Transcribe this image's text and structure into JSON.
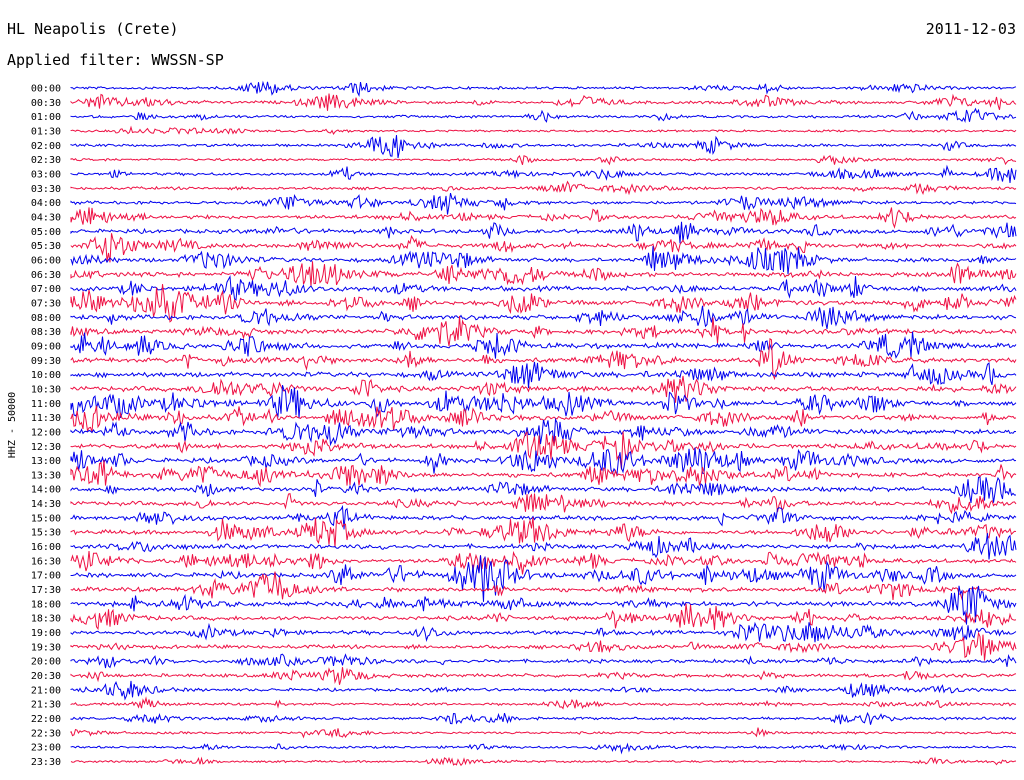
{
  "header": {
    "station": "HL Neapolis (Crete)",
    "date": "2011-12-03",
    "filter": "Applied filter: WWSSN-SP"
  },
  "chart_data": {
    "type": "line",
    "title": "HL Neapolis (Crete)",
    "ylabel": "HHZ - 50000",
    "row_labels": [
      "00:00",
      "00:30",
      "01:00",
      "01:30",
      "02:00",
      "02:30",
      "03:00",
      "03:30",
      "04:00",
      "04:30",
      "05:00",
      "05:30",
      "06:00",
      "06:30",
      "07:00",
      "07:30",
      "08:00",
      "08:30",
      "09:00",
      "09:30",
      "10:00",
      "10:30",
      "11:00",
      "11:30",
      "12:00",
      "12:30",
      "13:00",
      "13:30",
      "14:00",
      "14:30",
      "15:00",
      "15:30",
      "16:00",
      "16:30",
      "17:00",
      "17:30",
      "18:00",
      "18:30",
      "19:00",
      "19:30",
      "20:00",
      "20:30",
      "21:00",
      "21:30",
      "22:00",
      "22:30",
      "23:00",
      "23:30"
    ],
    "series_colors": [
      "#0000ee",
      "#ee1144"
    ],
    "activity_levels": [
      0.5,
      0.6,
      0.5,
      0.3,
      0.5,
      0.4,
      0.6,
      0.6,
      0.7,
      1.0,
      1.0,
      1.0,
      1.0,
      1.1,
      1.2,
      1.2,
      1.2,
      1.2,
      1.3,
      1.3,
      1.3,
      1.3,
      1.3,
      1.3,
      1.2,
      1.2,
      1.2,
      1.2,
      1.1,
      1.1,
      1.1,
      1.1,
      1.1,
      1.1,
      1.2,
      1.2,
      1.2,
      1.1,
      1.0,
      0.9,
      0.8,
      0.8,
      0.6,
      0.5,
      0.5,
      0.4,
      0.4,
      0.3
    ]
  }
}
